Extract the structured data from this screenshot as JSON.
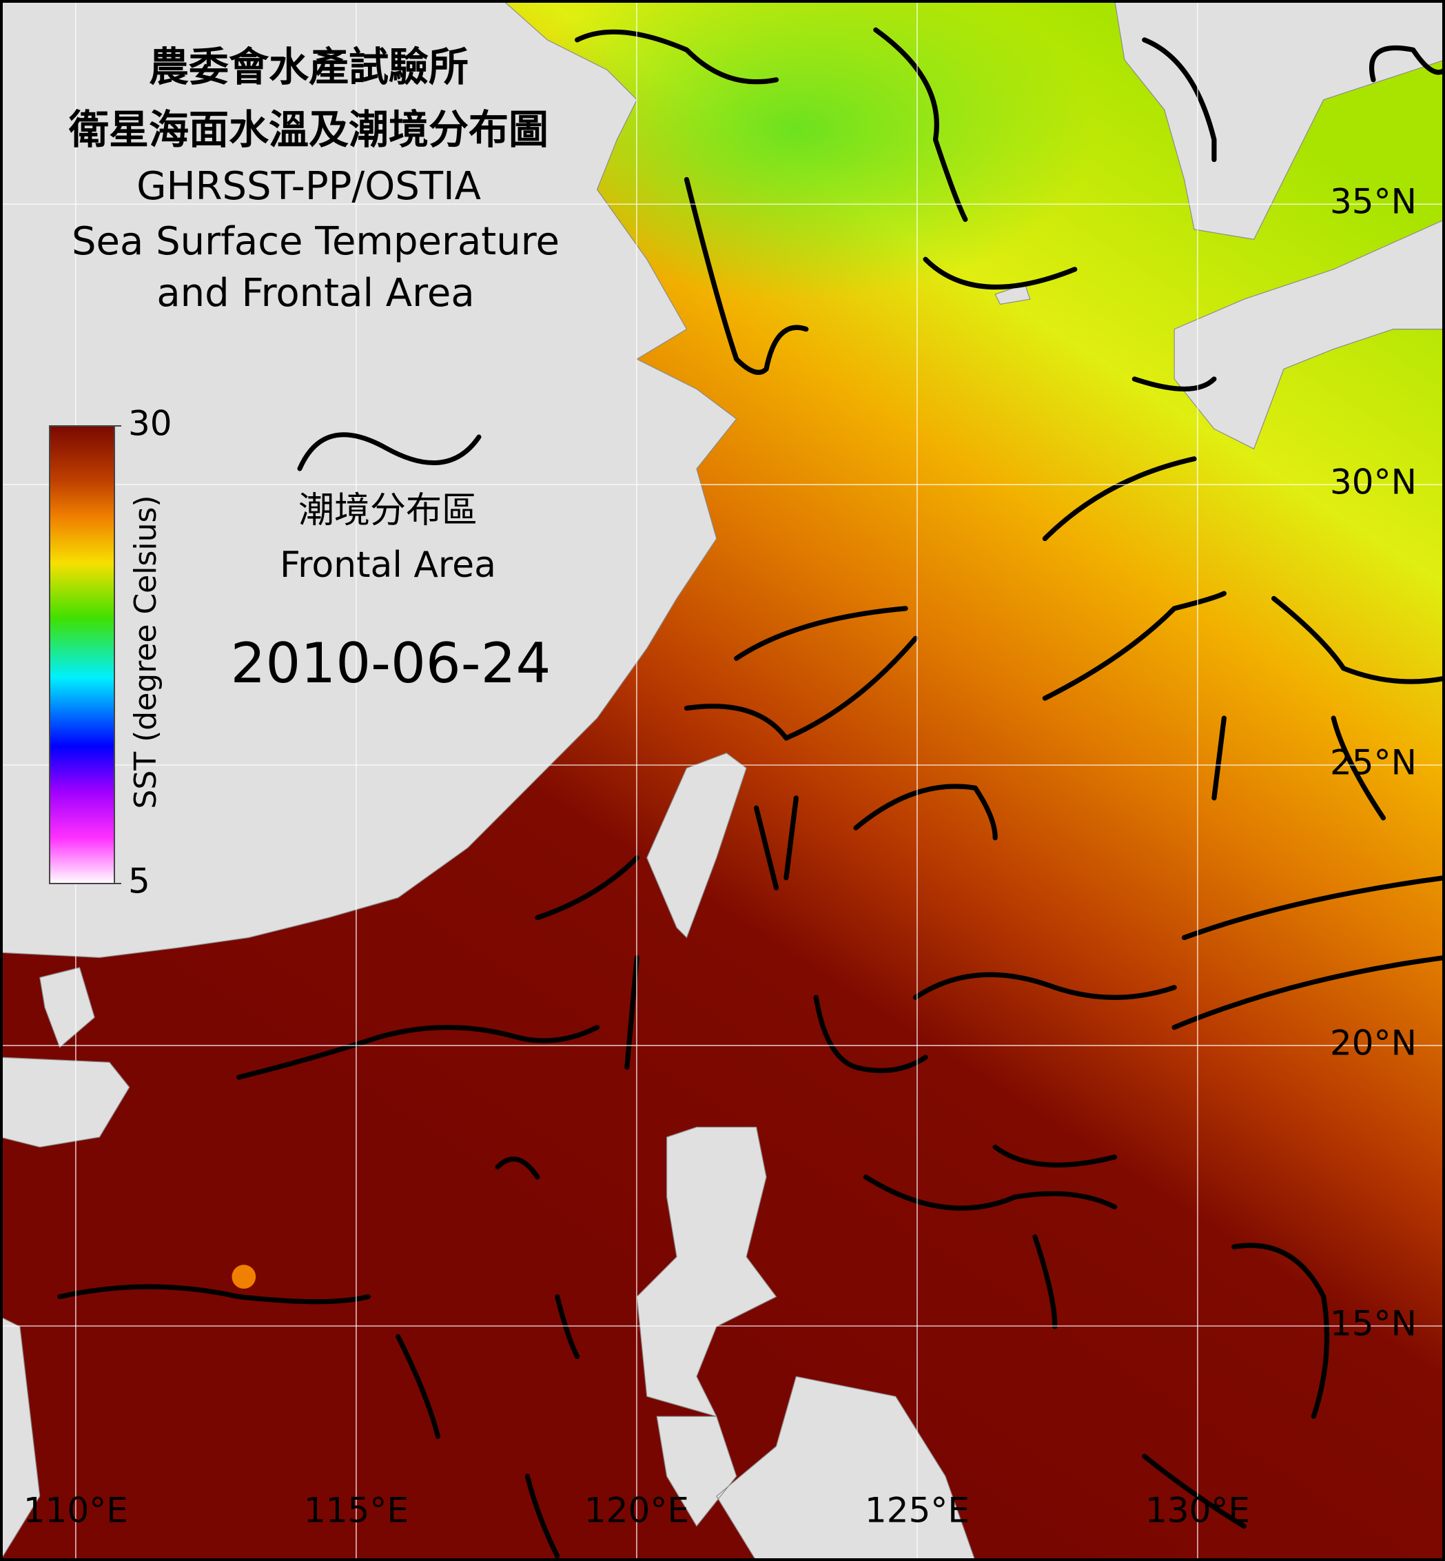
{
  "header": {
    "title": [
      "農委會水產試驗所",
      "衛星海面水溫及潮境分布圖",
      "GHRSST-PP/OSTIA",
      "Sea Surface Temperature",
      "and Frontal Area"
    ]
  },
  "legend": {
    "label_zh": "潮境分布區",
    "label_en": "Frontal Area"
  },
  "date": "2010-06-24",
  "colorbar": {
    "label": "SST (degree Celsius)",
    "range": [
      5,
      30
    ],
    "ticks": [
      5,
      30
    ]
  },
  "map": {
    "xlim": [
      108.65,
      134.41
    ],
    "ylim": [
      10.81,
      38.64
    ],
    "grid": true,
    "lon_ticks": [
      {
        "value": 110,
        "label": "110°E"
      },
      {
        "value": 115,
        "label": "115°E"
      },
      {
        "value": 120,
        "label": "120°E"
      },
      {
        "value": 125,
        "label": "125°E"
      },
      {
        "value": 130,
        "label": "130°E"
      }
    ],
    "lat_ticks": [
      {
        "value": 35,
        "label": "35°N"
      },
      {
        "value": 30,
        "label": "30°N"
      },
      {
        "value": 25,
        "label": "25°N"
      },
      {
        "value": 20,
        "label": "20°N"
      },
      {
        "value": 15,
        "label": "15°N"
      }
    ]
  }
}
